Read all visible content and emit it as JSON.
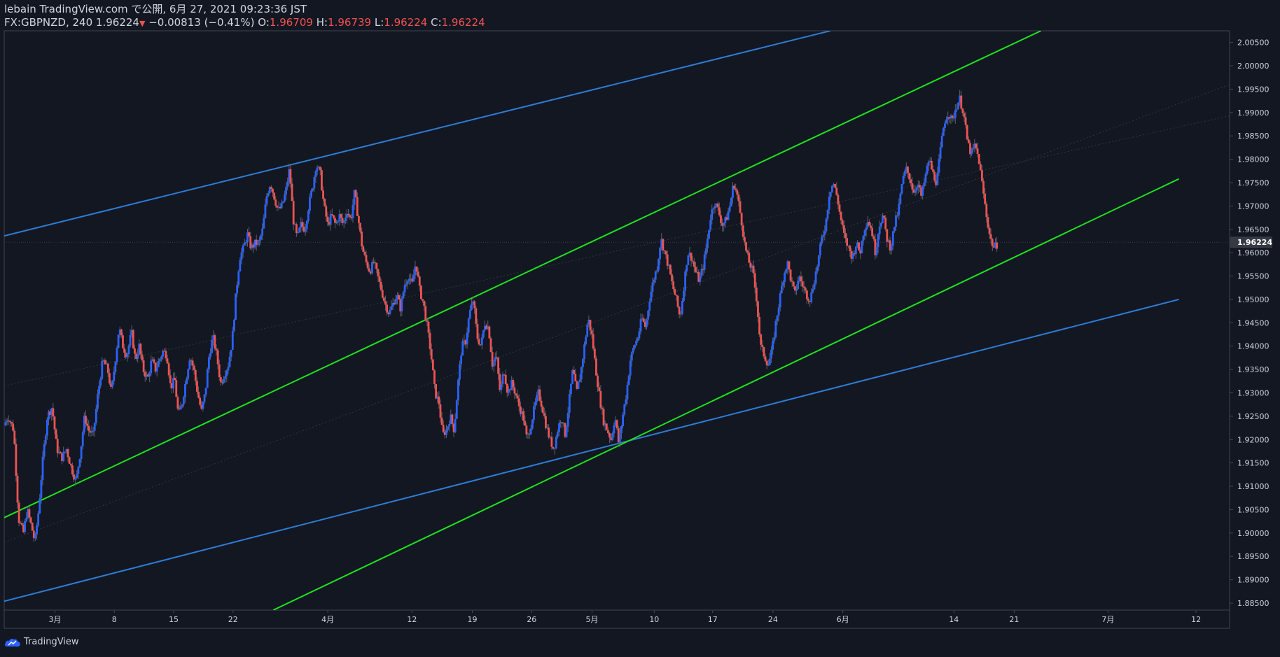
{
  "header": {
    "line1": "lebain TradingView.com で公開, 6月 27, 2021 09:23:36 JST",
    "symbol": "FX:GBPNZD, 240",
    "last": "1.96224",
    "down_arrow": "▼",
    "change": "−0.00813 (−0.41%)",
    "o_label": "O:",
    "o_value": "1.96709",
    "h_label": "H:",
    "h_value": "1.96739",
    "l_label": "L:",
    "l_value": "1.96224",
    "c_label": "C:",
    "c_value": "1.96224"
  },
  "footer": {
    "brand": "TradingView",
    "logo_icon": "tradingview-cloud-icon"
  },
  "colors": {
    "background": "#131722",
    "up": "#2962ff",
    "down": "#ef5350",
    "channel_blue": "#2e7cd6",
    "channel_green": "#1ee21e",
    "axis_text": "#d1d4dc",
    "last_price_label_bg": "#363a45"
  },
  "chart_data": {
    "type": "candlestick",
    "title": "FX:GBPNZD, 240",
    "ylim": [
      1.8835,
      2.0075
    ],
    "y_ticks": [
      "1.88500",
      "1.89000",
      "1.89500",
      "1.90000",
      "1.90500",
      "1.91000",
      "1.91500",
      "1.92000",
      "1.92500",
      "1.93000",
      "1.93500",
      "1.94000",
      "1.94500",
      "1.95000",
      "1.95500",
      "1.96000",
      "1.96500",
      "1.97000",
      "1.97500",
      "1.98000",
      "1.98500",
      "1.99000",
      "1.99500",
      "2.00000",
      "2.00500"
    ],
    "last_price_label": "1.96224",
    "x_ticks": [
      {
        "label": "3月",
        "pos": 5.3
      },
      {
        "label": "8",
        "pos": 11.5
      },
      {
        "label": "15",
        "pos": 17.7
      },
      {
        "label": "22",
        "pos": 23.9
      },
      {
        "label": "4月",
        "pos": 33.8
      },
      {
        "label": "12",
        "pos": 42.6
      },
      {
        "label": "19",
        "pos": 48.9
      },
      {
        "label": "26",
        "pos": 55.1
      },
      {
        "label": "5月",
        "pos": 61.4
      },
      {
        "label": "10",
        "pos": 67.9
      },
      {
        "label": "17",
        "pos": 74.0
      },
      {
        "label": "24",
        "pos": 80.3
      },
      {
        "label": "6月",
        "pos": 87.6
      },
      {
        "label": "14",
        "pos": 99.2
      },
      {
        "label": "21",
        "pos": 105.5
      },
      {
        "label": "7月",
        "pos": 115.3
      },
      {
        "label": "12",
        "pos": 124.5
      }
    ],
    "x_range": [
      0,
      128
    ],
    "price_path": [
      [
        0.0,
        1.923
      ],
      [
        0.4,
        1.925
      ],
      [
        1.0,
        1.922
      ],
      [
        1.5,
        1.903
      ],
      [
        2.0,
        1.9
      ],
      [
        2.4,
        1.905
      ],
      [
        2.9,
        1.901
      ],
      [
        3.2,
        1.898
      ],
      [
        3.6,
        1.905
      ],
      [
        4.0,
        1.915
      ],
      [
        4.5,
        1.925
      ],
      [
        5.0,
        1.927
      ],
      [
        5.5,
        1.918
      ],
      [
        6.0,
        1.916
      ],
      [
        6.5,
        1.918
      ],
      [
        7.0,
        1.914
      ],
      [
        7.5,
        1.911
      ],
      [
        8.0,
        1.918
      ],
      [
        8.4,
        1.925
      ],
      [
        8.8,
        1.922
      ],
      [
        9.3,
        1.921
      ],
      [
        9.8,
        1.93
      ],
      [
        10.3,
        1.937
      ],
      [
        10.8,
        1.935
      ],
      [
        11.2,
        1.93
      ],
      [
        11.6,
        1.937
      ],
      [
        12.0,
        1.944
      ],
      [
        12.4,
        1.94
      ],
      [
        12.8,
        1.938
      ],
      [
        13.3,
        1.943
      ],
      [
        13.7,
        1.937
      ],
      [
        14.1,
        1.94
      ],
      [
        14.5,
        1.935
      ],
      [
        15.0,
        1.933
      ],
      [
        15.4,
        1.937
      ],
      [
        15.8,
        1.935
      ],
      [
        16.2,
        1.937
      ],
      [
        16.6,
        1.939
      ],
      [
        17.0,
        1.938
      ],
      [
        17.4,
        1.931
      ],
      [
        17.8,
        1.933
      ],
      [
        18.2,
        1.925
      ],
      [
        18.6,
        1.928
      ],
      [
        19.0,
        1.933
      ],
      [
        19.4,
        1.938
      ],
      [
        19.8,
        1.935
      ],
      [
        20.2,
        1.93
      ],
      [
        20.6,
        1.926
      ],
      [
        21.0,
        1.93
      ],
      [
        21.4,
        1.938
      ],
      [
        21.8,
        1.942
      ],
      [
        22.2,
        1.938
      ],
      [
        22.6,
        1.932
      ],
      [
        23.0,
        1.934
      ],
      [
        23.4,
        1.936
      ],
      [
        23.8,
        1.941
      ],
      [
        24.2,
        1.951
      ],
      [
        24.6,
        1.959
      ],
      [
        25.0,
        1.961
      ],
      [
        25.4,
        1.964
      ],
      [
        25.8,
        1.961
      ],
      [
        26.2,
        1.962
      ],
      [
        26.6,
        1.962
      ],
      [
        27.0,
        1.965
      ],
      [
        27.4,
        1.972
      ],
      [
        27.8,
        1.975
      ],
      [
        28.2,
        1.972
      ],
      [
        28.6,
        1.969
      ],
      [
        29.0,
        1.97
      ],
      [
        29.4,
        1.973
      ],
      [
        29.8,
        1.978
      ],
      [
        30.2,
        1.967
      ],
      [
        30.6,
        1.963
      ],
      [
        31.0,
        1.966
      ],
      [
        31.4,
        1.965
      ],
      [
        31.8,
        1.97
      ],
      [
        32.2,
        1.974
      ],
      [
        32.6,
        1.979
      ],
      [
        33.0,
        1.977
      ],
      [
        33.4,
        1.97
      ],
      [
        33.8,
        1.966
      ],
      [
        34.2,
        1.968
      ],
      [
        34.6,
        1.966
      ],
      [
        35.0,
        1.968
      ],
      [
        35.4,
        1.966
      ],
      [
        35.8,
        1.969
      ],
      [
        36.2,
        1.967
      ],
      [
        36.6,
        1.973
      ],
      [
        37.0,
        1.967
      ],
      [
        37.4,
        1.961
      ],
      [
        37.8,
        1.958
      ],
      [
        38.2,
        1.956
      ],
      [
        38.6,
        1.958
      ],
      [
        39.0,
        1.955
      ],
      [
        39.4,
        1.952
      ],
      [
        39.8,
        1.949
      ],
      [
        40.2,
        1.947
      ],
      [
        40.6,
        1.949
      ],
      [
        41.0,
        1.951
      ],
      [
        41.4,
        1.948
      ],
      [
        41.8,
        1.953
      ],
      [
        42.2,
        1.955
      ],
      [
        42.6,
        1.953
      ],
      [
        43.0,
        1.958
      ],
      [
        43.4,
        1.952
      ],
      [
        43.8,
        1.949
      ],
      [
        44.2,
        1.944
      ],
      [
        44.6,
        1.938
      ],
      [
        45.0,
        1.93
      ],
      [
        45.4,
        1.928
      ],
      [
        45.8,
        1.921
      ],
      [
        46.2,
        1.922
      ],
      [
        46.6,
        1.925
      ],
      [
        47.0,
        1.922
      ],
      [
        47.4,
        1.932
      ],
      [
        47.8,
        1.94
      ],
      [
        48.2,
        1.941
      ],
      [
        48.6,
        1.947
      ],
      [
        49.0,
        1.95
      ],
      [
        49.4,
        1.942
      ],
      [
        49.8,
        1.94
      ],
      [
        50.2,
        1.945
      ],
      [
        50.6,
        1.944
      ],
      [
        51.0,
        1.936
      ],
      [
        51.4,
        1.938
      ],
      [
        51.8,
        1.93
      ],
      [
        52.2,
        1.935
      ],
      [
        52.6,
        1.93
      ],
      [
        53.0,
        1.932
      ],
      [
        53.4,
        1.93
      ],
      [
        53.8,
        1.927
      ],
      [
        54.2,
        1.925
      ],
      [
        54.6,
        1.92
      ],
      [
        55.0,
        1.923
      ],
      [
        55.4,
        1.927
      ],
      [
        55.8,
        1.93
      ],
      [
        56.2,
        1.927
      ],
      [
        56.6,
        1.923
      ],
      [
        57.0,
        1.92
      ],
      [
        57.4,
        1.918
      ],
      [
        57.8,
        1.922
      ],
      [
        58.2,
        1.925
      ],
      [
        58.6,
        1.921
      ],
      [
        59.0,
        1.928
      ],
      [
        59.4,
        1.935
      ],
      [
        59.8,
        1.93
      ],
      [
        60.2,
        1.934
      ],
      [
        60.6,
        1.94
      ],
      [
        61.0,
        1.946
      ],
      [
        61.4,
        1.942
      ],
      [
        61.8,
        1.935
      ],
      [
        62.2,
        1.929
      ],
      [
        62.6,
        1.924
      ],
      [
        63.0,
        1.922
      ],
      [
        63.4,
        1.92
      ],
      [
        63.8,
        1.925
      ],
      [
        64.2,
        1.919
      ],
      [
        64.6,
        1.925
      ],
      [
        65.0,
        1.93
      ],
      [
        65.4,
        1.937
      ],
      [
        65.8,
        1.94
      ],
      [
        66.2,
        1.942
      ],
      [
        66.6,
        1.946
      ],
      [
        67.0,
        1.944
      ],
      [
        67.4,
        1.95
      ],
      [
        67.8,
        1.954
      ],
      [
        68.2,
        1.957
      ],
      [
        68.6,
        1.963
      ],
      [
        69.0,
        1.96
      ],
      [
        69.4,
        1.957
      ],
      [
        69.8,
        1.953
      ],
      [
        70.2,
        1.95
      ],
      [
        70.6,
        1.946
      ],
      [
        71.0,
        1.953
      ],
      [
        71.4,
        1.96
      ],
      [
        71.8,
        1.959
      ],
      [
        72.2,
        1.956
      ],
      [
        72.6,
        1.954
      ],
      [
        73.0,
        1.957
      ],
      [
        73.4,
        1.962
      ],
      [
        73.8,
        1.968
      ],
      [
        74.2,
        1.971
      ],
      [
        74.6,
        1.969
      ],
      [
        75.0,
        1.966
      ],
      [
        75.4,
        1.967
      ],
      [
        75.8,
        1.97
      ],
      [
        76.2,
        1.975
      ],
      [
        76.6,
        1.972
      ],
      [
        77.0,
        1.967
      ],
      [
        77.4,
        1.961
      ],
      [
        77.8,
        1.958
      ],
      [
        78.2,
        1.956
      ],
      [
        78.6,
        1.95
      ],
      [
        79.0,
        1.94
      ],
      [
        79.4,
        1.938
      ],
      [
        79.8,
        1.936
      ],
      [
        80.2,
        1.939
      ],
      [
        80.6,
        1.945
      ],
      [
        81.0,
        1.95
      ],
      [
        81.4,
        1.955
      ],
      [
        81.8,
        1.958
      ],
      [
        82.2,
        1.954
      ],
      [
        82.6,
        1.951
      ],
      [
        83.0,
        1.955
      ],
      [
        83.4,
        1.953
      ],
      [
        83.8,
        1.951
      ],
      [
        84.2,
        1.95
      ],
      [
        84.6,
        1.954
      ],
      [
        85.0,
        1.958
      ],
      [
        85.4,
        1.963
      ],
      [
        85.8,
        1.966
      ],
      [
        86.2,
        1.973
      ],
      [
        86.6,
        1.975
      ],
      [
        87.0,
        1.972
      ],
      [
        87.4,
        1.967
      ],
      [
        87.8,
        1.963
      ],
      [
        88.2,
        1.961
      ],
      [
        88.6,
        1.959
      ],
      [
        89.0,
        1.962
      ],
      [
        89.4,
        1.96
      ],
      [
        89.8,
        1.965
      ],
      [
        90.2,
        1.967
      ],
      [
        90.6,
        1.965
      ],
      [
        91.0,
        1.96
      ],
      [
        91.4,
        1.966
      ],
      [
        91.8,
        1.968
      ],
      [
        92.2,
        1.963
      ],
      [
        92.6,
        1.961
      ],
      [
        93.0,
        1.966
      ],
      [
        93.4,
        1.969
      ],
      [
        93.8,
        1.975
      ],
      [
        94.2,
        1.978
      ],
      [
        94.6,
        1.976
      ],
      [
        95.0,
        1.973
      ],
      [
        95.4,
        1.975
      ],
      [
        95.8,
        1.972
      ],
      [
        96.2,
        1.976
      ],
      [
        96.6,
        1.98
      ],
      [
        97.0,
        1.977
      ],
      [
        97.4,
        1.975
      ],
      [
        97.8,
        1.982
      ],
      [
        98.2,
        1.988
      ],
      [
        98.6,
        1.99
      ],
      [
        99.0,
        1.988
      ],
      [
        99.4,
        1.991
      ],
      [
        99.8,
        1.993
      ],
      [
        100.2,
        1.99
      ],
      [
        100.6,
        1.984
      ],
      [
        101.0,
        1.981
      ],
      [
        101.4,
        1.983
      ],
      [
        101.8,
        1.98
      ],
      [
        102.2,
        1.974
      ],
      [
        102.6,
        1.968
      ],
      [
        103.0,
        1.963
      ],
      [
        103.4,
        1.961
      ],
      [
        103.8,
        1.962
      ]
    ],
    "trendlines": [
      {
        "color": "blue",
        "from": [
          0.0,
          1.9636
        ],
        "to": [
          86.3,
          2.0075
        ]
      },
      {
        "color": "blue",
        "from": [
          0.0,
          1.8854
        ],
        "to": [
          122.7,
          1.95
        ]
      },
      {
        "color": "green",
        "from": [
          0.0,
          1.9033
        ],
        "to": [
          108.3,
          2.0075
        ]
      },
      {
        "color": "green",
        "from": [
          28.1,
          1.8835
        ],
        "to": [
          122.7,
          1.9758
        ]
      }
    ]
  }
}
